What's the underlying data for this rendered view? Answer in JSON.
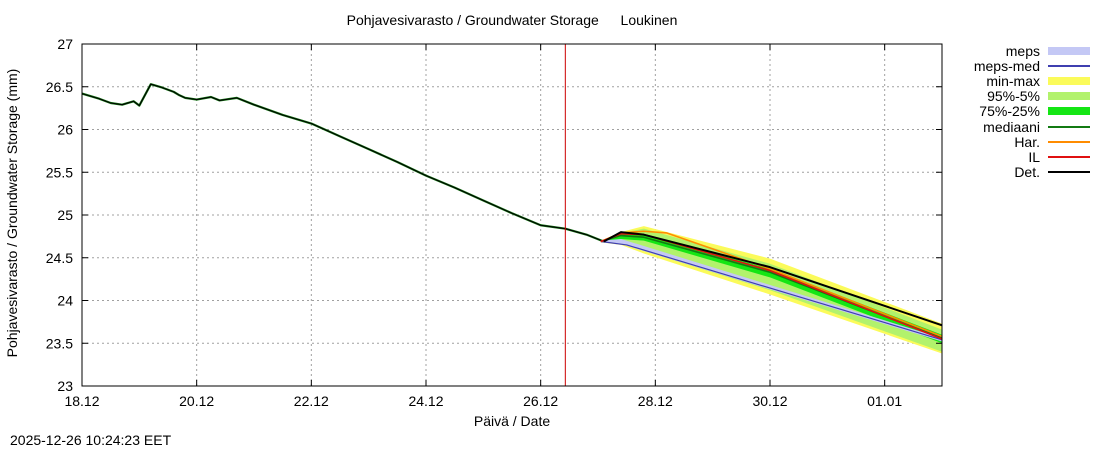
{
  "page": {
    "title_fi": "Pohjavesivarasto / Groundwater Storage",
    "station": "Loukinen",
    "timestamp": "2025-12-26 10:24:23 EET"
  },
  "legend": [
    {
      "label": "meps",
      "color": "#c4c8f5",
      "style": "band"
    },
    {
      "label": "meps-med",
      "color": "#3f3fb0",
      "style": "line"
    },
    {
      "label": "min-max",
      "color": "#fbfb5a",
      "style": "band"
    },
    {
      "label": "95%-5%",
      "color": "#b2f26c",
      "style": "band"
    },
    {
      "label": "75%-25%",
      "color": "#14e614",
      "style": "band"
    },
    {
      "label": "mediaani",
      "color": "#137a13",
      "style": "line"
    },
    {
      "label": "Har.",
      "color": "#ff8c00",
      "style": "line"
    },
    {
      "label": "IL",
      "color": "#e01010",
      "style": "line"
    },
    {
      "label": "Det.",
      "color": "#000000",
      "style": "line"
    }
  ],
  "chart_data": {
    "type": "line",
    "title": "Pohjavesivarasto / Groundwater Storage   Loukinen",
    "xlabel": "Päivä / Date",
    "ylabel": "Pohjavesivarasto / Groundwater Storage (mm)",
    "x_unit": "days since 18.12",
    "xlim": [
      0,
      15
    ],
    "ylim": [
      23,
      27
    ],
    "grid": true,
    "legend_position": "outside-right",
    "x_ticks": [
      {
        "x": 0,
        "label": "18.12"
      },
      {
        "x": 2,
        "label": "20.12"
      },
      {
        "x": 4,
        "label": "22.12"
      },
      {
        "x": 6,
        "label": "24.12"
      },
      {
        "x": 8,
        "label": "26.12"
      },
      {
        "x": 10,
        "label": "28.12"
      },
      {
        "x": 12,
        "label": "30.12"
      },
      {
        "x": 14,
        "label": "01.01"
      }
    ],
    "y_ticks": [
      {
        "y": 23,
        "label": "23"
      },
      {
        "y": 23.5,
        "label": "23.5"
      },
      {
        "y": 24,
        "label": "24"
      },
      {
        "y": 24.5,
        "label": "24.5"
      },
      {
        "y": 25,
        "label": "25"
      },
      {
        "y": 25.5,
        "label": "25.5"
      },
      {
        "y": 26,
        "label": "26"
      },
      {
        "y": 26.5,
        "label": "26.5"
      },
      {
        "y": 27,
        "label": "27"
      }
    ],
    "now_marker": {
      "x": 8.43,
      "color": "#cc0000"
    },
    "observed": {
      "name": "Det.",
      "x": [
        0,
        0.3,
        0.5,
        0.7,
        0.9,
        1.0,
        1.2,
        1.4,
        1.6,
        1.7,
        1.8,
        2.0,
        2.25,
        2.4,
        2.7,
        3.0,
        3.5,
        4.0,
        4.5,
        5.0,
        5.5,
        6.0,
        6.5,
        7.0,
        7.5,
        8.0,
        8.43,
        8.8,
        9.1
      ],
      "y": [
        26.42,
        26.36,
        26.31,
        26.29,
        26.33,
        26.28,
        26.53,
        26.49,
        26.44,
        26.4,
        26.37,
        26.35,
        26.38,
        26.34,
        26.37,
        26.29,
        26.17,
        26.07,
        25.92,
        25.77,
        25.62,
        25.46,
        25.32,
        25.17,
        25.02,
        24.88,
        24.84,
        24.77,
        24.69
      ]
    },
    "bands": [
      {
        "name": "meps",
        "x": [
          9.05,
          9.4,
          15
        ],
        "low": [
          24.68,
          24.66,
          23.52
        ],
        "high": [
          24.7,
          24.72,
          23.56
        ]
      },
      {
        "name": "min-max",
        "x": [
          9.05,
          9.4,
          9.8,
          12,
          15
        ],
        "low": [
          24.68,
          24.65,
          24.55,
          24.07,
          23.38
        ],
        "high": [
          24.7,
          24.8,
          24.87,
          24.49,
          23.73
        ]
      },
      {
        "name": "95%-5%",
        "x": [
          9.05,
          9.4,
          9.8,
          12,
          15
        ],
        "low": [
          24.68,
          24.67,
          24.58,
          24.12,
          23.4
        ],
        "high": [
          24.7,
          24.79,
          24.84,
          24.43,
          23.66
        ]
      },
      {
        "name": "75%-25%",
        "x": [
          9.05,
          9.4,
          9.8,
          12,
          15
        ],
        "low": [
          24.69,
          24.72,
          24.7,
          24.27,
          23.5
        ],
        "high": [
          24.7,
          24.79,
          24.78,
          24.37,
          23.6
        ]
      }
    ],
    "series": [
      {
        "name": "meps-med",
        "x": [
          9.05,
          9.5,
          15
        ],
        "y": [
          24.69,
          24.65,
          23.54
        ]
      },
      {
        "name": "mediaani",
        "x": [
          9.05,
          9.4,
          9.8,
          12,
          15
        ],
        "y": [
          24.69,
          24.76,
          24.74,
          24.33,
          23.56
        ]
      },
      {
        "name": "Har.",
        "x": [
          9.05,
          9.4,
          9.8,
          10.2,
          12,
          15
        ],
        "y": [
          24.69,
          24.79,
          24.81,
          24.79,
          24.37,
          23.58
        ]
      },
      {
        "name": "IL",
        "x": [
          9.05,
          9.4,
          9.8,
          12,
          15
        ],
        "y": [
          24.69,
          24.78,
          24.77,
          24.35,
          23.55
        ]
      },
      {
        "name": "Det.",
        "x": [
          9.1,
          9.4,
          9.8,
          12,
          15
        ],
        "y": [
          24.69,
          24.8,
          24.77,
          24.39,
          23.71
        ]
      }
    ]
  }
}
